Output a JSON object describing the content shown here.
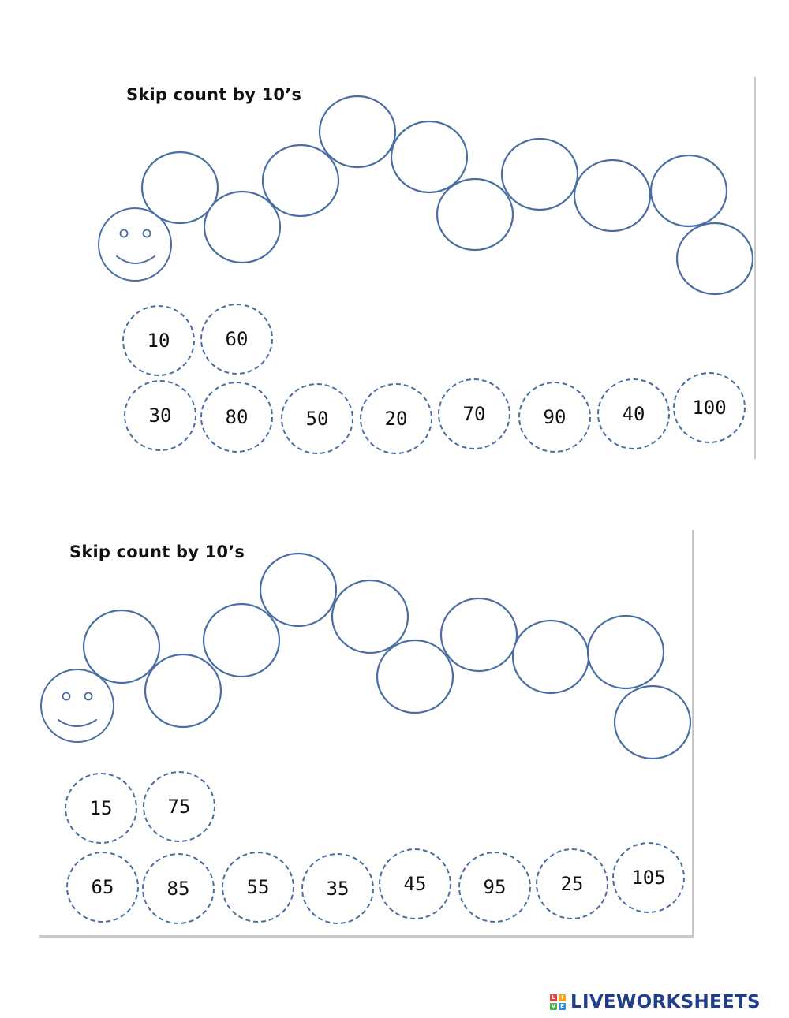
{
  "colors": {
    "outline": "#4a6da3",
    "text": "#111111",
    "logo_blue": "#1f3f8a",
    "logo_tiles": [
      "#e43e3e",
      "#f7a41d",
      "#4bb14a",
      "#2e8fd8"
    ]
  },
  "sections": [
    {
      "title": "Skip count by 10’s",
      "tokens_row_1": [
        "10",
        "60"
      ],
      "tokens_row_2": [
        "30",
        "80",
        "50",
        "20",
        "70",
        "90",
        "40",
        "100"
      ]
    },
    {
      "title": "Skip count by 10’s",
      "tokens_row_1": [
        "15",
        "75"
      ],
      "tokens_row_2": [
        "65",
        "85",
        "55",
        "35",
        "45",
        "95",
        "25",
        "105"
      ]
    }
  ],
  "logo": {
    "tiles": [
      "L",
      "I",
      "V",
      "E"
    ],
    "text": "LIVEWORKSHEETS",
    "icon": "liveworksheets-logo-icon"
  }
}
